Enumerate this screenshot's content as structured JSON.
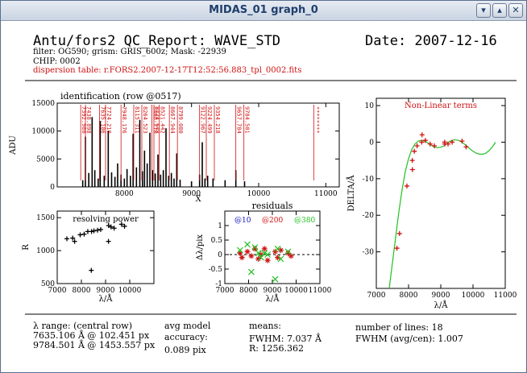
{
  "window": {
    "title": "MIDAS_01 graph_0",
    "min_icon": "minimize-icon",
    "max_icon": "maximize-icon",
    "close_icon": "close-icon"
  },
  "header": {
    "title": "Antu/fors2 QC_Report: WAVE_STD",
    "date": "Date: 2007-12-16",
    "filter_line": "filter: OG590; grism: GRIS_600z; Mask: -22939",
    "chip_line": "CHIP: 0002",
    "dispersion_line": "dispersion table: r.FORS2.2007-12-17T12:52:56.883_tpl_0002.fits"
  },
  "footer": {
    "lambda_range_label": "λ range: (central row)",
    "lambda_range_1": "7635.106 Å @ 102.451 px",
    "lambda_range_2": "9784.501 Å @ 1453.557 px",
    "avg_model": "avg model",
    "accuracy": "accuracy:",
    "accuracy_value": "0.089 pix",
    "means": "means:",
    "fwhm": "FWHM: 7.037 Å",
    "r_value": "R: 1256.362",
    "num_lines": "number of lines: 18",
    "fwhm_avg": "FWHM (avg/cen): 1.007"
  },
  "chart_data": [
    {
      "type": "bar",
      "title": "identification (row @0517)",
      "xlabel": "X",
      "ylabel": "ADU",
      "xlim": [
        7000,
        11200
      ],
      "ylim": [
        0,
        15000
      ],
      "xticks": [
        8000,
        9000,
        10000,
        11000
      ],
      "yticks": [
        0,
        5000,
        10000,
        15000
      ],
      "spectrum": [
        [
          7380,
          1200
        ],
        [
          7420,
          9000
        ],
        [
          7470,
          2500
        ],
        [
          7520,
          12500
        ],
        [
          7560,
          3000
        ],
        [
          7610,
          1500
        ],
        [
          7640,
          11800
        ],
        [
          7700,
          2000
        ],
        [
          7760,
          10000
        ],
        [
          7810,
          2600
        ],
        [
          7860,
          1800
        ],
        [
          7900,
          4200
        ],
        [
          7950,
          2200
        ],
        [
          8000,
          1500
        ],
        [
          8040,
          3200
        ],
        [
          8090,
          2000
        ],
        [
          8130,
          9500
        ],
        [
          8180,
          3500
        ],
        [
          8230,
          12000
        ],
        [
          8270,
          2800
        ],
        [
          8300,
          6500
        ],
        [
          8340,
          4200
        ],
        [
          8380,
          9700
        ],
        [
          8420,
          3000
        ],
        [
          8460,
          2400
        ],
        [
          8500,
          5800
        ],
        [
          8540,
          2200
        ],
        [
          8580,
          3000
        ],
        [
          8620,
          10500
        ],
        [
          8660,
          2000
        ],
        [
          8700,
          2500
        ],
        [
          8740,
          1500
        ],
        [
          8780,
          6000
        ],
        [
          8830,
          1300
        ],
        [
          9000,
          1000
        ],
        [
          9120,
          2200
        ],
        [
          9160,
          8000
        ],
        [
          9200,
          1500
        ],
        [
          9240,
          2000
        ],
        [
          9320,
          1500
        ],
        [
          9500,
          1200
        ],
        [
          9660,
          3000
        ],
        [
          9790,
          1000
        ]
      ],
      "line_ids": [
        {
          "x": 7350,
          "label": "7392.980"
        },
        {
          "x": 7420,
          "label": "7438.898"
        },
        {
          "x": 7630,
          "label": "7635.106"
        },
        {
          "x": 7720,
          "label": "7724.210"
        },
        {
          "x": 7950,
          "label": "7948.176"
        },
        {
          "x": 8140,
          "label": "8115.311"
        },
        {
          "x": 8260,
          "label": "8264.523"
        },
        {
          "x": 8410,
          "label": "8408.210"
        },
        {
          "x": 8440,
          "label": "8424.648"
        },
        {
          "x": 8520,
          "label": "8521.442"
        },
        {
          "x": 8670,
          "label": "8667.944"
        },
        {
          "x": 8790,
          "label": "8799.080"
        },
        {
          "x": 9120,
          "label": "9122.967"
        },
        {
          "x": 9220,
          "label": "9224.499"
        },
        {
          "x": 9340,
          "label": "9354.218"
        },
        {
          "x": 9660,
          "label": "9657.784"
        },
        {
          "x": 9780,
          "label": "9784.501"
        },
        {
          "x": 10820,
          "label": "********"
        }
      ]
    },
    {
      "type": "scatter",
      "title": "resolving power",
      "xlabel": "λ/Å",
      "ylabel": "R",
      "xlim": [
        7000,
        11000
      ],
      "ylim": [
        500,
        1600
      ],
      "xticks": [
        7000,
        8000,
        9000,
        10000
      ],
      "yticks": [
        500,
        1000,
        1500
      ],
      "points": [
        [
          7400,
          1180
        ],
        [
          7640,
          1190
        ],
        [
          7720,
          1140
        ],
        [
          7950,
          1240
        ],
        [
          8115,
          1250
        ],
        [
          8265,
          1290
        ],
        [
          8410,
          700
        ],
        [
          8420,
          1290
        ],
        [
          8520,
          1300
        ],
        [
          8670,
          1310
        ],
        [
          8800,
          1320
        ],
        [
          9120,
          1140
        ],
        [
          9125,
          1380
        ],
        [
          9225,
          1360
        ],
        [
          9354,
          1340
        ],
        [
          9660,
          1400
        ],
        [
          9785,
          1370
        ]
      ]
    },
    {
      "type": "scatter",
      "title": "residuals",
      "xlabel": "λ/Å",
      "ylabel": "Δλ/pix",
      "xlim": [
        7000,
        11000
      ],
      "ylim": [
        -1,
        1.5
      ],
      "xticks": [
        7000,
        8000,
        9000,
        10000,
        11000
      ],
      "yticks": [
        -1,
        -0.5,
        0,
        0.5,
        1
      ],
      "legend": [
        {
          "name": "@10",
          "color": "#1010c0"
        },
        {
          "name": "@200",
          "color": "#d01010"
        },
        {
          "name": "@380",
          "color": "#20c020"
        }
      ],
      "series": [
        {
          "name": "@200",
          "color": "#d01010",
          "points": [
            [
              7640,
              0.05
            ],
            [
              7720,
              -0.1
            ],
            [
              7950,
              0.1
            ],
            [
              8115,
              -0.05
            ],
            [
              8265,
              0.2
            ],
            [
              8410,
              -0.15
            ],
            [
              8520,
              0.0
            ],
            [
              8670,
              0.2
            ],
            [
              8800,
              -0.2
            ],
            [
              9120,
              0.1
            ],
            [
              9225,
              -0.1
            ],
            [
              9354,
              0.15
            ],
            [
              9660,
              0.05
            ],
            [
              9785,
              -0.05
            ]
          ]
        },
        {
          "name": "@380",
          "color": "#20c020",
          "points": [
            [
              7640,
              0.15
            ],
            [
              7950,
              0.35
            ],
            [
              8115,
              -0.6
            ],
            [
              8265,
              0.25
            ],
            [
              8410,
              0.05
            ],
            [
              8520,
              -0.1
            ],
            [
              8670,
              0.05
            ],
            [
              8800,
              0.0
            ],
            [
              9120,
              -0.85
            ],
            [
              9225,
              0.2
            ],
            [
              9354,
              -0.15
            ],
            [
              9660,
              0.1
            ]
          ]
        }
      ]
    },
    {
      "type": "scatter",
      "title": "Non-Linear terms",
      "xlabel": "λ/Å",
      "ylabel": "DELTA/Å",
      "xlim": [
        7000,
        11000
      ],
      "ylim": [
        -40,
        12
      ],
      "xticks": [
        7000,
        8000,
        9000,
        10000,
        11000
      ],
      "yticks": [
        -30,
        -20,
        -10,
        0,
        10
      ],
      "fit_curve": [
        [
          7400,
          -40
        ],
        [
          7500,
          -33
        ],
        [
          7600,
          -26
        ],
        [
          7700,
          -19
        ],
        [
          7800,
          -13
        ],
        [
          7900,
          -8
        ],
        [
          8000,
          -4.5
        ],
        [
          8100,
          -2
        ],
        [
          8200,
          -0.5
        ],
        [
          8300,
          0.3
        ],
        [
          8400,
          0.5
        ],
        [
          8500,
          0.3
        ],
        [
          8600,
          -0.2
        ],
        [
          8700,
          -0.8
        ],
        [
          8800,
          -1.3
        ],
        [
          8900,
          -1.5
        ],
        [
          9000,
          -1.4
        ],
        [
          9100,
          -1.0
        ],
        [
          9200,
          -0.3
        ],
        [
          9300,
          0.3
        ],
        [
          9400,
          0.6
        ],
        [
          9500,
          0.6
        ],
        [
          9600,
          0.3
        ],
        [
          9700,
          -0.3
        ],
        [
          9800,
          -1.0
        ],
        [
          9900,
          -1.8
        ],
        [
          10000,
          -2.5
        ],
        [
          10100,
          -3.0
        ],
        [
          10200,
          -3.3
        ],
        [
          10300,
          -3.3
        ],
        [
          10400,
          -3.0
        ],
        [
          10500,
          -2.3
        ],
        [
          10600,
          -1.3
        ],
        [
          10700,
          0.0
        ]
      ],
      "points": [
        [
          7640,
          -29
        ],
        [
          7720,
          -25
        ],
        [
          7950,
          -12
        ],
        [
          8115,
          -5
        ],
        [
          8120,
          -7.5
        ],
        [
          8180,
          -2.5
        ],
        [
          8265,
          -1.0
        ],
        [
          8410,
          0.0
        ],
        [
          8420,
          2.0
        ],
        [
          8520,
          0.5
        ],
        [
          8670,
          -0.5
        ],
        [
          8800,
          -1.0
        ],
        [
          9120,
          0.0
        ],
        [
          9125,
          -0.5
        ],
        [
          9225,
          -0.5
        ],
        [
          9354,
          0.0
        ],
        [
          9660,
          0.3
        ],
        [
          9785,
          -1.3
        ]
      ]
    }
  ]
}
